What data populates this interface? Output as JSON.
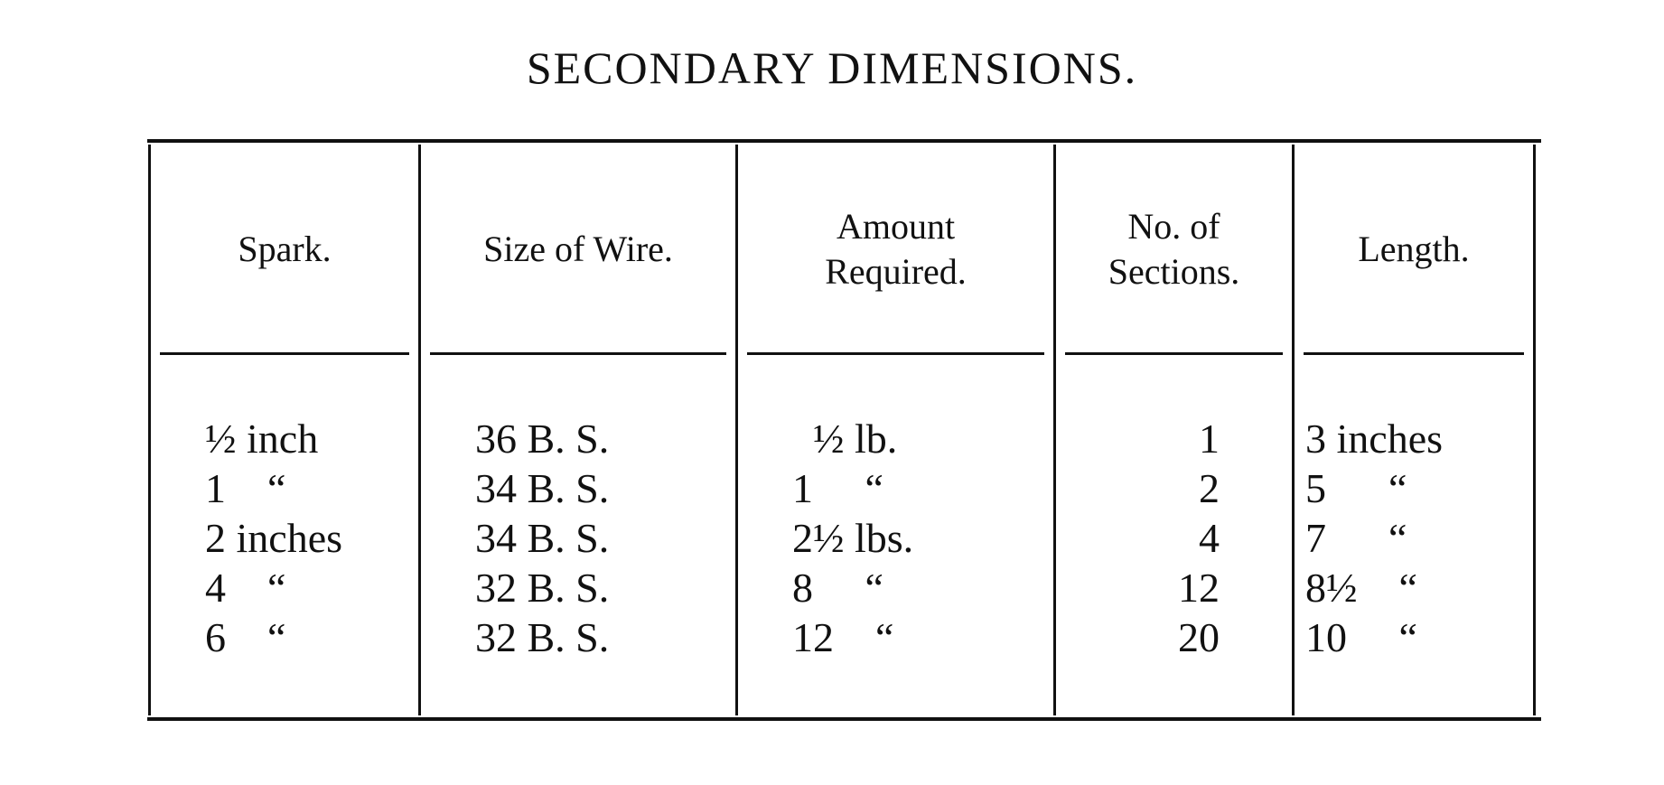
{
  "title": "SECONDARY DIMENSIONS.",
  "table": {
    "columns": [
      {
        "header": "Spark.",
        "values": [
          "½ inch",
          "1    “",
          "2 inches",
          "4    “",
          "6    “"
        ]
      },
      {
        "header": "Size of Wire.",
        "values": [
          "36 B. S.",
          "34 B. S.",
          "34 B. S.",
          "32 B. S.",
          "32 B. S."
        ]
      },
      {
        "header": "Amount Required.",
        "values": [
          "  ½ lb.",
          "1     “",
          "2½ lbs.",
          "8     “",
          "12    “"
        ]
      },
      {
        "header": "No.  of Sections.",
        "values": [
          "1",
          "2",
          "4",
          "12",
          "20"
        ]
      },
      {
        "header": "Length.",
        "values": [
          "3 inches",
          "5      “",
          "7      “",
          "8½    “",
          "10     “"
        ]
      }
    ]
  }
}
